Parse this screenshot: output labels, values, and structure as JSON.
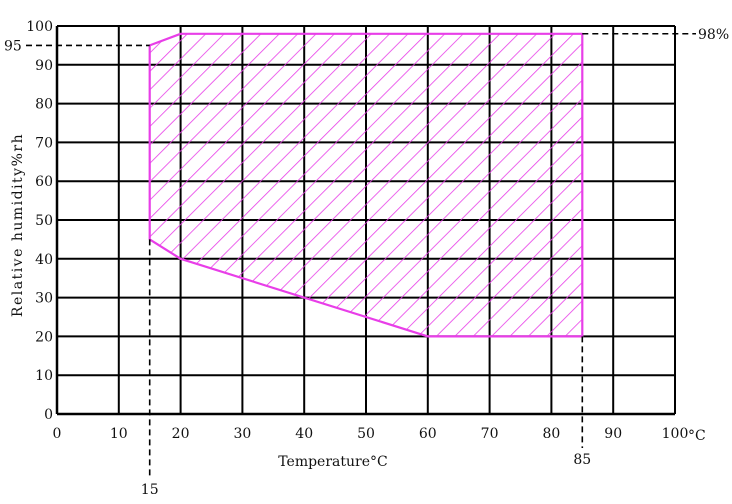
{
  "chart_data": {
    "type": "area",
    "title": "",
    "xlabel": "Temperature°C",
    "ylabel": "Relative humidity%rh",
    "x_unit": "°C",
    "xlim": [
      0,
      100
    ],
    "ylim": [
      0,
      100
    ],
    "xticks": [
      0,
      10,
      20,
      30,
      40,
      50,
      60,
      70,
      80,
      90,
      100
    ],
    "yticks": [
      0,
      10,
      20,
      30,
      40,
      50,
      60,
      70,
      80,
      90,
      100
    ],
    "grid": true,
    "region": {
      "fill": "hatched",
      "color": "#e83ee8",
      "points": [
        {
          "x": 15,
          "y": 45
        },
        {
          "x": 15,
          "y": 95
        },
        {
          "x": 20,
          "y": 98
        },
        {
          "x": 85,
          "y": 98
        },
        {
          "x": 85,
          "y": 20
        },
        {
          "x": 60,
          "y": 20
        },
        {
          "x": 20,
          "y": 40
        }
      ]
    },
    "reference_lines": [
      {
        "orientation": "horizontal",
        "value": 95,
        "from": 0,
        "to": 15,
        "label": "95",
        "label_side": "left"
      },
      {
        "orientation": "horizontal",
        "value": 98,
        "from": 85,
        "to": 100,
        "label": "98%",
        "label_side": "right"
      },
      {
        "orientation": "vertical",
        "value": 15,
        "label": "15",
        "label_side": "below"
      },
      {
        "orientation": "vertical",
        "value": 85,
        "label": "85",
        "label_side": "below"
      }
    ]
  }
}
